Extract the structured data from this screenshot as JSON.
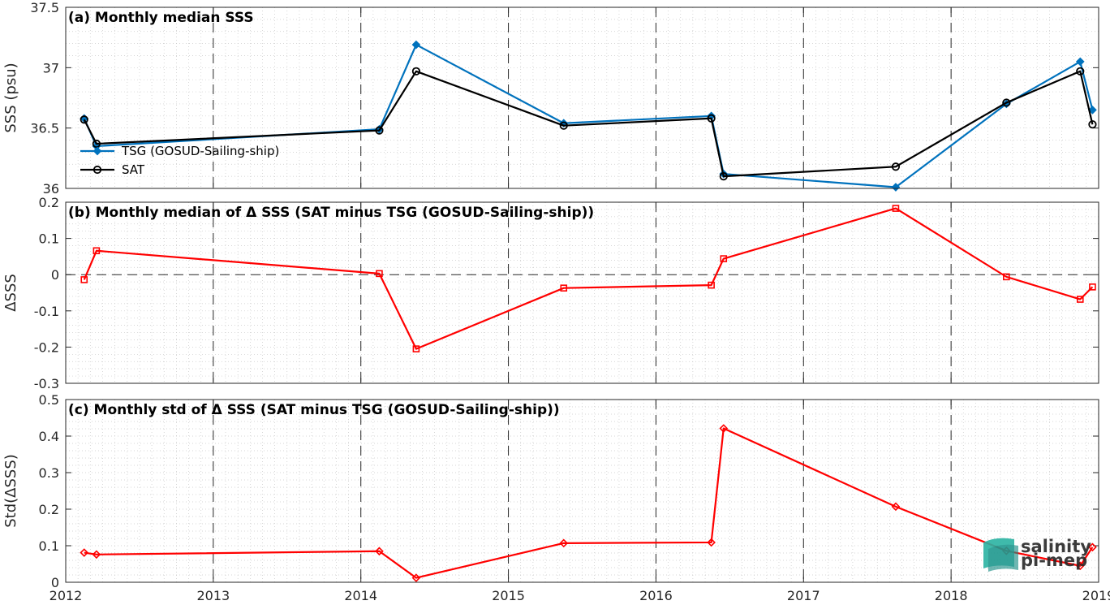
{
  "chart_data": [
    {
      "type": "line",
      "title": "(a) Monthly median SSS",
      "ylabel": "SSS (psu)",
      "ylim": [
        36,
        37.5
      ],
      "yticks": [
        "36",
        "36.5",
        "37",
        "37.5"
      ],
      "legend_position": "left",
      "series": [
        {
          "name": "TSG (GOSUD-Sailing-ship)",
          "color": "#0072BD",
          "marker": "diamond-filled",
          "x": [
            "2012-02",
            "2012-03",
            "2014-02",
            "2014-05",
            "2015-05",
            "2016-05",
            "2016-06",
            "2017-08",
            "2018-05",
            "2018-11",
            "2018-12"
          ],
          "values": [
            36.58,
            36.35,
            36.49,
            37.19,
            36.54,
            36.6,
            36.12,
            36.01,
            36.7,
            37.05,
            36.65
          ]
        },
        {
          "name": "SAT",
          "color": "#000000",
          "marker": "circle-open",
          "x": [
            "2012-02",
            "2012-03",
            "2014-02",
            "2014-05",
            "2015-05",
            "2016-05",
            "2016-06",
            "2017-08",
            "2018-05",
            "2018-11",
            "2018-12"
          ],
          "values": [
            36.57,
            36.37,
            36.48,
            36.97,
            36.52,
            36.58,
            36.1,
            36.18,
            36.71,
            36.97,
            36.53
          ]
        }
      ]
    },
    {
      "type": "line",
      "title": "(b) Monthly median of Δ SSS (SAT minus TSG (GOSUD-Sailing-ship))",
      "ylabel": "ΔSSS",
      "ylim": [
        -0.3,
        0.2
      ],
      "yticks": [
        "-0.3",
        "-0.2",
        "-0.1",
        "0",
        "0.1",
        "0.2"
      ],
      "zero_line": true,
      "series": [
        {
          "color": "#FF0000",
          "marker": "square-open",
          "x": [
            "2012-02",
            "2012-03",
            "2014-02",
            "2014-05",
            "2015-05",
            "2016-05",
            "2016-06",
            "2017-08",
            "2018-05",
            "2018-11",
            "2018-12"
          ],
          "values": [
            -0.014,
            0.066,
            0.003,
            -0.205,
            -0.037,
            -0.029,
            0.044,
            0.183,
            -0.006,
            -0.068,
            -0.034
          ]
        }
      ]
    },
    {
      "type": "line",
      "title": "(c) Monthly std of Δ SSS (SAT minus TSG (GOSUD-Sailing-ship))",
      "ylabel": "Std(ΔSSS)",
      "ylim": [
        0,
        0.5
      ],
      "yticks": [
        "0",
        "0.1",
        "0.2",
        "0.3",
        "0.4",
        "0.5"
      ],
      "xlim": [
        "2012",
        "2019"
      ],
      "xticks": [
        "2012",
        "2013",
        "2014",
        "2015",
        "2016",
        "2017",
        "2018",
        "2019"
      ],
      "series": [
        {
          "color": "#FF0000",
          "marker": "diamond-open",
          "x": [
            "2012-02",
            "2012-03",
            "2014-02",
            "2014-05",
            "2015-05",
            "2016-05",
            "2016-06",
            "2017-08",
            "2018-05",
            "2018-11",
            "2018-12"
          ],
          "values": [
            0.081,
            0.076,
            0.085,
            0.012,
            0.107,
            0.109,
            0.421,
            0.207,
            0.086,
            0.045,
            0.096
          ]
        }
      ]
    }
  ],
  "logo": {
    "line1": "salinity",
    "line2": "pi-mep",
    "color": "#1aa39a"
  }
}
